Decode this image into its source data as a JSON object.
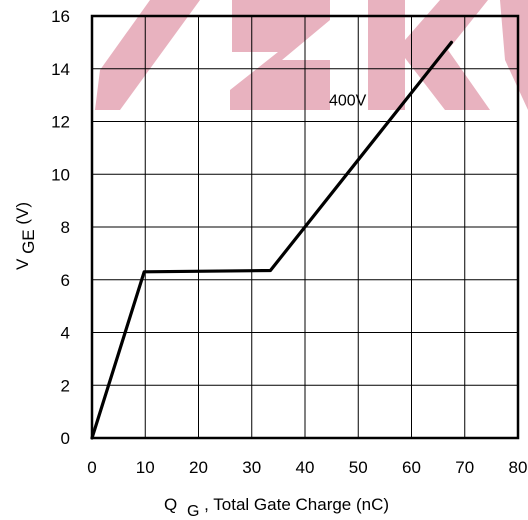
{
  "chart_data": {
    "type": "line",
    "title": "",
    "xlabel": {
      "main": "Q",
      "sub": "G",
      "rest": ", Total Gate Charge (nC)"
    },
    "ylabel": {
      "main": "V",
      "sub": "GE",
      "rest": " (V)"
    },
    "xlim": [
      0,
      80
    ],
    "ylim": [
      0,
      16
    ],
    "xticks": [
      "0",
      "10",
      "20",
      "30",
      "40",
      "50",
      "60",
      "70",
      "80"
    ],
    "yticks": [
      "0",
      "2",
      "4",
      "6",
      "8",
      "10",
      "12",
      "14",
      "16"
    ],
    "grid": true,
    "series": [
      {
        "x": [
          0,
          9.8,
          33.5,
          67.5
        ],
        "y": [
          0,
          6.3,
          6.35,
          15.0
        ]
      }
    ],
    "annotations": [
      {
        "text": "400V",
        "x": 44.5,
        "y": 12.6
      }
    ],
    "watermark": "SKY",
    "colors": {
      "line": "#000000",
      "grid": "#000000",
      "watermark": "#e8b2bf"
    }
  }
}
